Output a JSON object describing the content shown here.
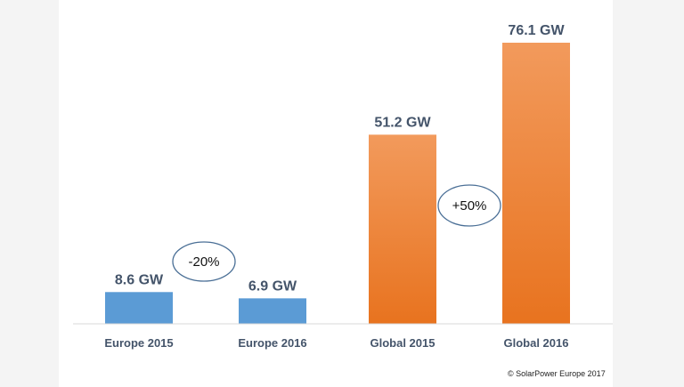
{
  "chart_data": {
    "type": "bar",
    "categories": [
      "Europe 2015",
      "Europe 2016",
      "Global 2015",
      "Global 2016"
    ],
    "values": [
      8.6,
      6.9,
      51.2,
      76.1
    ],
    "unit": "GW",
    "data_labels": [
      "8.6 GW",
      "6.9 GW",
      "51.2 GW",
      "76.1 GW"
    ],
    "bar_colors": [
      "#5b9bd5",
      "#5b9bd5",
      "#ed7d31",
      "#ed7d31"
    ],
    "ylim": [
      0,
      76.1
    ],
    "title": "",
    "xlabel": "",
    "ylabel": "",
    "grid": false,
    "annotations": [
      {
        "text": "-20%",
        "between": [
          "Europe 2015",
          "Europe 2016"
        ]
      },
      {
        "text": "+50%",
        "between": [
          "Global 2015",
          "Global 2016"
        ]
      }
    ]
  },
  "colors": {
    "europe": "#5b9bd5",
    "global_top": "#f29a5c",
    "global_bottom": "#e8731f",
    "text": "#44546a",
    "ellipse_stroke": "#4a6f96"
  },
  "footer": {
    "copyright": "© SolarPower Europe 2017"
  }
}
